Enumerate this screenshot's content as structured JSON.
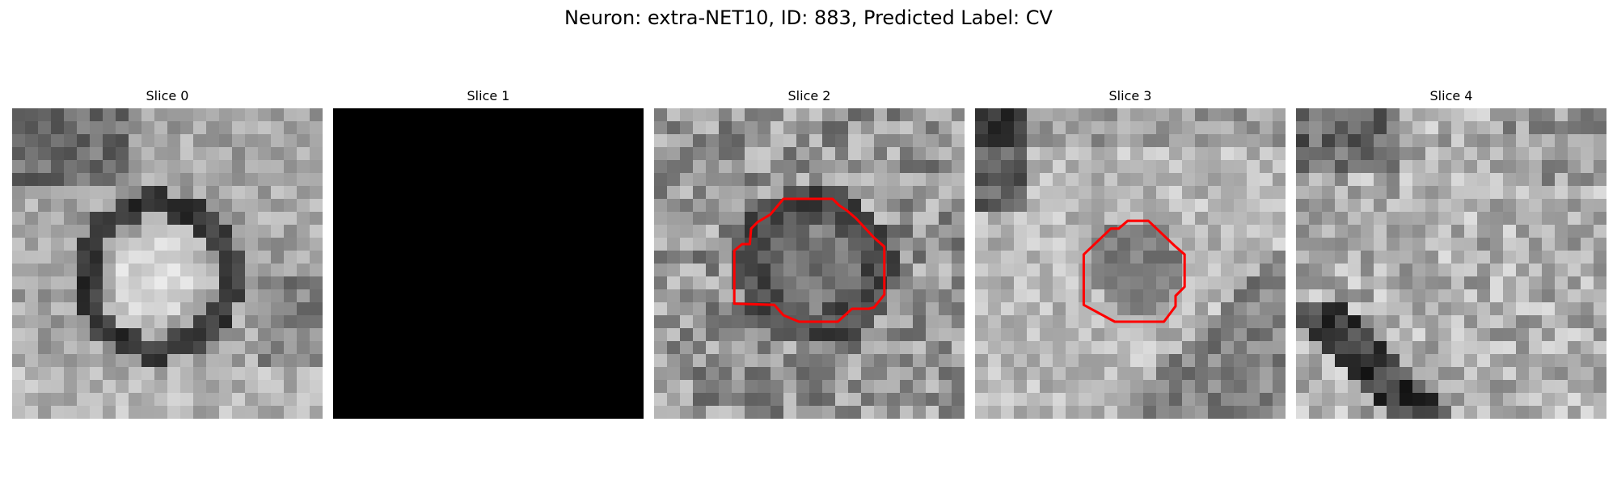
{
  "figure": {
    "title": "Neuron: extra-NET10, ID: 883, Predicted Label: CV"
  },
  "panels": [
    {
      "title": "Slice 0",
      "content": "grayscale microscopy patch",
      "contour": false
    },
    {
      "title": "Slice 1",
      "content": "blank black patch",
      "contour": false
    },
    {
      "title": "Slice 2",
      "content": "grayscale microscopy patch",
      "contour": true
    },
    {
      "title": "Slice 3",
      "content": "grayscale microscopy patch",
      "contour": true
    },
    {
      "title": "Slice 4",
      "content": "grayscale microscopy patch",
      "contour": false
    }
  ],
  "colors": {
    "contour": "#ff0000",
    "background": "#ffffff",
    "blank": "#000000"
  }
}
